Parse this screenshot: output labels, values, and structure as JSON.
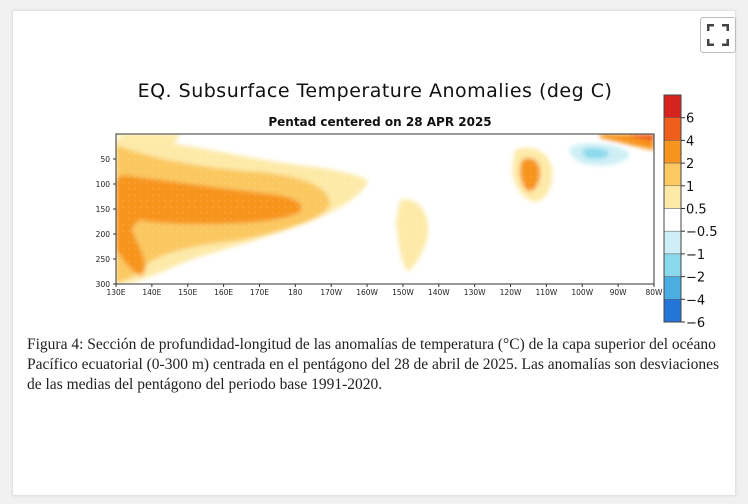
{
  "chart_data": {
    "type": "heatmap",
    "title": "EQ. Subsurface Temperature Anomalies (deg C)",
    "subtitle": "Pentad centered on 28 APR 2025",
    "xlabel": "",
    "ylabel": "",
    "x_ticks": [
      "130E",
      "140E",
      "150E",
      "160E",
      "170E",
      "180",
      "170W",
      "160W",
      "150W",
      "140W",
      "130W",
      "120W",
      "110W",
      "100W",
      "90W",
      "80W"
    ],
    "y_ticks": [
      "50",
      "100",
      "150",
      "200",
      "250",
      "300"
    ],
    "y_range_m": [
      0,
      300
    ],
    "colorbar": {
      "ticks": [
        "6",
        "4",
        "2",
        "1",
        "0.5",
        "−0.5",
        "−1",
        "−2",
        "−4",
        "−6"
      ],
      "colors": [
        "#d7231e",
        "#ef5e1a",
        "#f7941d",
        "#fbc861",
        "#fdeaa8",
        "#ffffff",
        "#cdeff5",
        "#8ad9ec",
        "#4aaee2",
        "#2574d8"
      ]
    },
    "regions": [
      {
        "range": "0.5 to 1",
        "longitude": "130E-170W",
        "depth": "0-290 m"
      },
      {
        "range": "1 to 2",
        "longitude": "130E-175E",
        "depth": "60-260 m"
      },
      {
        "range": "2 to 4",
        "longitude": "130E-180",
        "depth": "90-250 m"
      },
      {
        "range": "0.5 to 1",
        "longitude": "165W-145W",
        "depth": "100-270 m"
      },
      {
        "range": "1 to 2",
        "longitude": "115W-110W",
        "depth": "30-150 m"
      },
      {
        "range": "-1 to -0.5",
        "longitude": "100W-90W",
        "depth": "20-60 m"
      },
      {
        "range": "1 to 2",
        "longitude": "90W-80W",
        "depth": "0-30 m"
      }
    ]
  },
  "caption": "Figura 4: Sección de profundidad-longitud de las anomalías de temperatura (°C) de la capa superior del océano Pacífico ecuatorial (0-300 m) centrada en el pentágono del 28 de abril de 2025. Las anomalías son desviaciones de las medias del pentágono del periodo base 1991-2020."
}
